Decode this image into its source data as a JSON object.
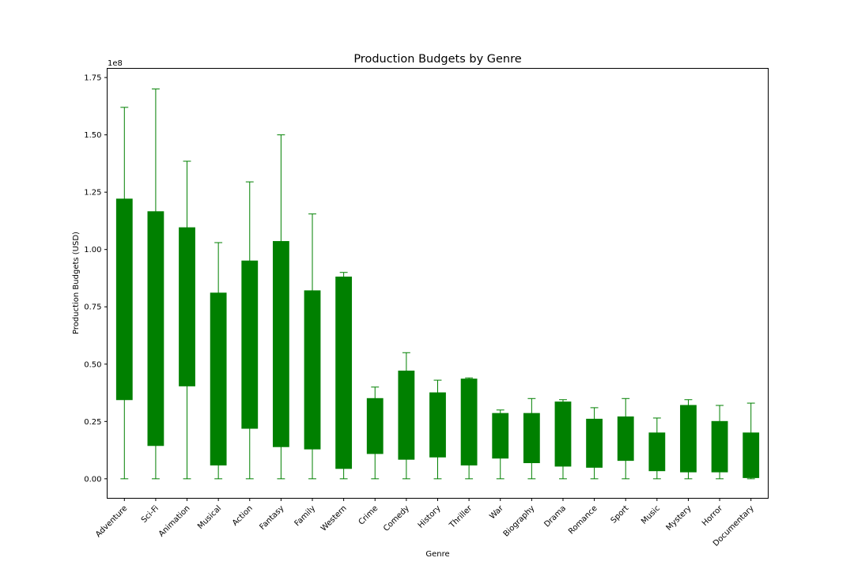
{
  "chart_data": {
    "type": "box",
    "title": "Production Budgets by Genre",
    "xlabel": "Genre",
    "ylabel": "Production Budgets (USD)",
    "y_offset_label": "1e8",
    "y_scale": 100000000,
    "ylim": [
      -0.085,
      1.79
    ],
    "y_ticks": [
      0.0,
      0.25,
      0.5,
      0.75,
      1.0,
      1.25,
      1.5,
      1.75
    ],
    "y_tick_labels": [
      "0.00",
      "0.25",
      "0.50",
      "0.75",
      "1.00",
      "1.25",
      "1.50",
      "1.75"
    ],
    "color": "#008000",
    "grid": false,
    "categories": [
      "Adventure",
      "Sci-Fi",
      "Animation",
      "Musical",
      "Action",
      "Fantasy",
      "Family",
      "Western",
      "Crime",
      "Comedy",
      "History",
      "Thriller",
      "War",
      "Biography",
      "Drama",
      "Romance",
      "Sport",
      "Music",
      "Mystery",
      "Horror",
      "Documentary"
    ],
    "boxes": [
      {
        "whislo": 0.0,
        "q1": 0.345,
        "q3": 1.22,
        "whishi": 1.62
      },
      {
        "whislo": 0.0,
        "q1": 0.145,
        "q3": 1.165,
        "whishi": 1.7
      },
      {
        "whislo": 0.0,
        "q1": 0.405,
        "q3": 1.095,
        "whishi": 1.385
      },
      {
        "whislo": 0.0,
        "q1": 0.06,
        "q3": 0.81,
        "whishi": 1.03
      },
      {
        "whislo": 0.0,
        "q1": 0.22,
        "q3": 0.95,
        "whishi": 1.295
      },
      {
        "whislo": 0.0,
        "q1": 0.14,
        "q3": 1.035,
        "whishi": 1.5
      },
      {
        "whislo": 0.0,
        "q1": 0.13,
        "q3": 0.82,
        "whishi": 1.155
      },
      {
        "whislo": 0.0,
        "q1": 0.045,
        "q3": 0.88,
        "whishi": 0.9
      },
      {
        "whislo": 0.0,
        "q1": 0.11,
        "q3": 0.35,
        "whishi": 0.4
      },
      {
        "whislo": 0.0,
        "q1": 0.085,
        "q3": 0.47,
        "whishi": 0.55
      },
      {
        "whislo": 0.0,
        "q1": 0.095,
        "q3": 0.375,
        "whishi": 0.43
      },
      {
        "whislo": 0.0,
        "q1": 0.06,
        "q3": 0.435,
        "whishi": 0.44
      },
      {
        "whislo": 0.0,
        "q1": 0.09,
        "q3": 0.285,
        "whishi": 0.3
      },
      {
        "whislo": 0.0,
        "q1": 0.07,
        "q3": 0.285,
        "whishi": 0.35
      },
      {
        "whislo": 0.0,
        "q1": 0.055,
        "q3": 0.335,
        "whishi": 0.345
      },
      {
        "whislo": 0.0,
        "q1": 0.05,
        "q3": 0.26,
        "whishi": 0.31
      },
      {
        "whislo": 0.0,
        "q1": 0.08,
        "q3": 0.27,
        "whishi": 0.35
      },
      {
        "whislo": 0.0,
        "q1": 0.035,
        "q3": 0.2,
        "whishi": 0.265
      },
      {
        "whislo": 0.0,
        "q1": 0.03,
        "q3": 0.32,
        "whishi": 0.345
      },
      {
        "whislo": 0.0,
        "q1": 0.03,
        "q3": 0.25,
        "whishi": 0.32
      },
      {
        "whislo": 0.0,
        "q1": 0.005,
        "q3": 0.2,
        "whishi": 0.33
      }
    ]
  }
}
